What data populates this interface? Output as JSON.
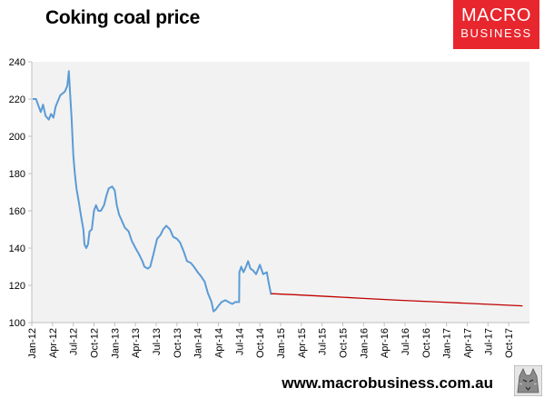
{
  "header": {
    "title": "Coking coal price"
  },
  "logo": {
    "line1": "MACRO",
    "line2": "BUSINESS"
  },
  "footer": {
    "url": "www.macrobusiness.com.au"
  },
  "colors": {
    "actual": "#5b9bd5",
    "forecast": "#c00000",
    "plot_bg": "#f2f2f2",
    "logo_bg": "#e8262d"
  },
  "chart_data": {
    "type": "line",
    "title": "Coking coal price",
    "xlabel": "",
    "ylabel": "",
    "ylim": [
      100,
      240
    ],
    "yticks": [
      100,
      120,
      140,
      160,
      180,
      200,
      220,
      240
    ],
    "x_range": [
      "2012-01",
      "2017-12"
    ],
    "xticks": [
      "Jan-12",
      "Apr-12",
      "Jul-12",
      "Oct-12",
      "Jan-13",
      "Apr-13",
      "Jul-13",
      "Oct-13",
      "Jan-14",
      "Apr-14",
      "Jul-14",
      "Oct-14",
      "Jan-15",
      "Apr-15",
      "Jul-15",
      "Oct-15",
      "Jan-16",
      "Apr-16",
      "Jul-16",
      "Oct-16",
      "Jan-17",
      "Apr-17",
      "Jul-17",
      "Oct-17"
    ],
    "grid": false,
    "legend": "none",
    "series": [
      {
        "points": [
          [
            "2012-01-05",
            220
          ],
          [
            "2012-01-20",
            220
          ],
          [
            "2012-02-01",
            216
          ],
          [
            "2012-02-10",
            213
          ],
          [
            "2012-02-20",
            217
          ],
          [
            "2012-03-01",
            211
          ],
          [
            "2012-03-15",
            209
          ],
          [
            "2012-03-25",
            212
          ],
          [
            "2012-04-05",
            210
          ],
          [
            "2012-04-15",
            216
          ],
          [
            "2012-04-25",
            219
          ],
          [
            "2012-05-05",
            222
          ],
          [
            "2012-05-15",
            223
          ],
          [
            "2012-05-25",
            224
          ],
          [
            "2012-06-05",
            227
          ],
          [
            "2012-06-12",
            235
          ],
          [
            "2012-06-18",
            222
          ],
          [
            "2012-06-24",
            210
          ],
          [
            "2012-07-01",
            190
          ],
          [
            "2012-07-08",
            180
          ],
          [
            "2012-07-15",
            172
          ],
          [
            "2012-07-25",
            165
          ],
          [
            "2012-08-05",
            157
          ],
          [
            "2012-08-15",
            150
          ],
          [
            "2012-08-20",
            142
          ],
          [
            "2012-08-28",
            140
          ],
          [
            "2012-09-05",
            142
          ],
          [
            "2012-09-12",
            149
          ],
          [
            "2012-09-22",
            150
          ],
          [
            "2012-10-01",
            160
          ],
          [
            "2012-10-10",
            163
          ],
          [
            "2012-10-20",
            160
          ],
          [
            "2012-11-01",
            160
          ],
          [
            "2012-11-15",
            163
          ],
          [
            "2012-11-25",
            168
          ],
          [
            "2012-12-05",
            172
          ],
          [
            "2012-12-20",
            173
          ],
          [
            "2013-01-01",
            171
          ],
          [
            "2013-01-10",
            163
          ],
          [
            "2013-01-20",
            158
          ],
          [
            "2013-02-01",
            155
          ],
          [
            "2013-02-15",
            151
          ],
          [
            "2013-03-01",
            149
          ],
          [
            "2013-03-15",
            144
          ],
          [
            "2013-04-01",
            140
          ],
          [
            "2013-04-15",
            137
          ],
          [
            "2013-05-01",
            133
          ],
          [
            "2013-05-10",
            130
          ],
          [
            "2013-05-25",
            129
          ],
          [
            "2013-06-05",
            130
          ],
          [
            "2013-06-20",
            137
          ],
          [
            "2013-07-05",
            145
          ],
          [
            "2013-07-20",
            147
          ],
          [
            "2013-08-01",
            150
          ],
          [
            "2013-08-15",
            152
          ],
          [
            "2013-09-01",
            150
          ],
          [
            "2013-09-15",
            146
          ],
          [
            "2013-10-01",
            145
          ],
          [
            "2013-10-15",
            143
          ],
          [
            "2013-11-01",
            138
          ],
          [
            "2013-11-15",
            133
          ],
          [
            "2013-12-01",
            132
          ],
          [
            "2013-12-15",
            130
          ],
          [
            "2014-01-01",
            127
          ],
          [
            "2014-01-15",
            125
          ],
          [
            "2014-02-01",
            122
          ],
          [
            "2014-02-15",
            116
          ],
          [
            "2014-03-01",
            111
          ],
          [
            "2014-03-10",
            106
          ],
          [
            "2014-03-20",
            107
          ],
          [
            "2014-04-01",
            109
          ],
          [
            "2014-04-15",
            111
          ],
          [
            "2014-05-01",
            112
          ],
          [
            "2014-05-15",
            111
          ],
          [
            "2014-06-01",
            110
          ],
          [
            "2014-06-15",
            111
          ],
          [
            "2014-07-01",
            111
          ],
          [
            "2014-07-02",
            127
          ],
          [
            "2014-07-10",
            130
          ],
          [
            "2014-07-20",
            127
          ],
          [
            "2014-08-01",
            130
          ],
          [
            "2014-08-10",
            133
          ],
          [
            "2014-08-20",
            129
          ],
          [
            "2014-09-01",
            128
          ],
          [
            "2014-09-15",
            126
          ],
          [
            "2014-10-01",
            131
          ],
          [
            "2014-10-15",
            126
          ],
          [
            "2014-11-01",
            127
          ],
          [
            "2014-11-10",
            121
          ],
          [
            "2014-11-20",
            115
          ]
        ]
      },
      {
        "points": [
          [
            "2014-11-20",
            115.5
          ],
          [
            "2015-03-01",
            115
          ],
          [
            "2015-08-01",
            114
          ],
          [
            "2016-01-01",
            113
          ],
          [
            "2016-06-01",
            112
          ],
          [
            "2016-12-01",
            111
          ],
          [
            "2017-06-01",
            110
          ],
          [
            "2017-12-01",
            109
          ]
        ]
      }
    ]
  }
}
